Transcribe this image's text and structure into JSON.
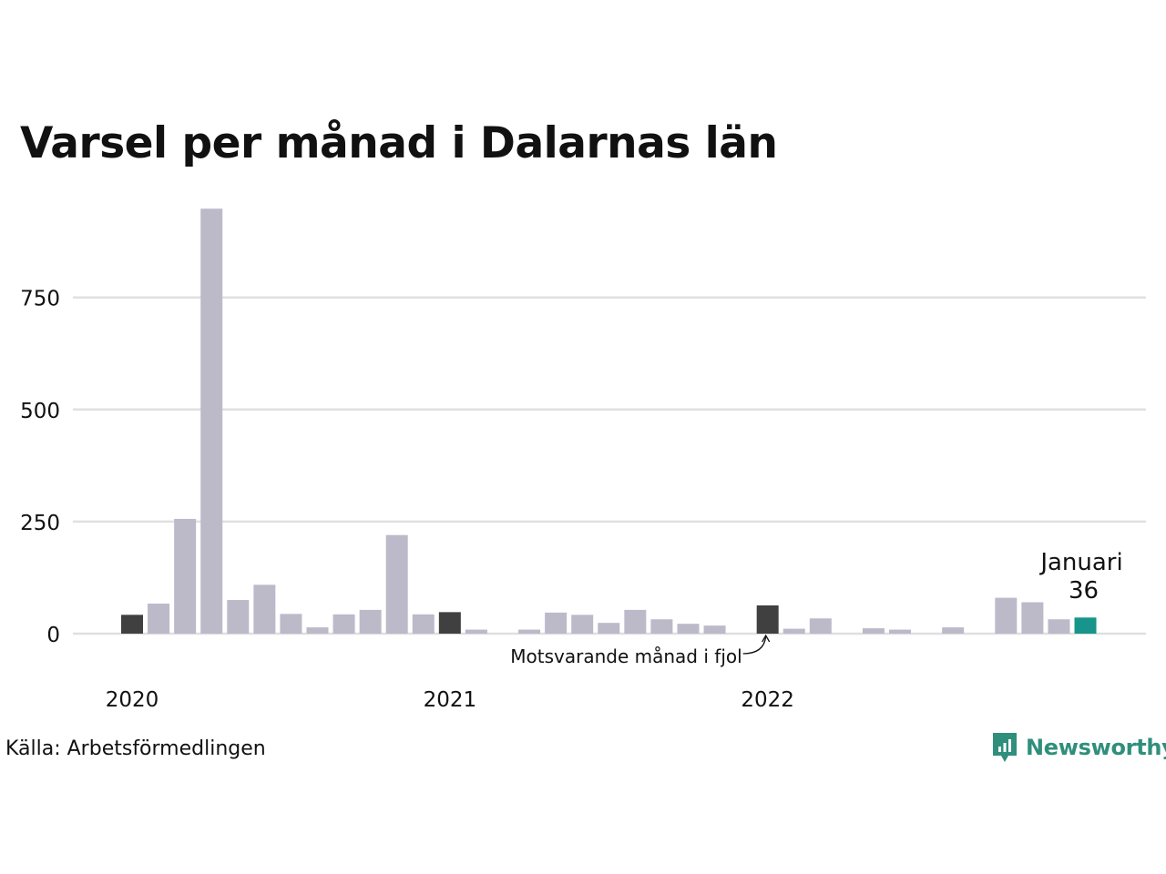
{
  "title": "Varsel per månad i Dalarnas län",
  "source": "Källa: Arbetsförmedlingen",
  "brand": {
    "name": "Newsworthy",
    "color": "#2f8f7c",
    "icon": "bar-chart-speech-bubble-icon"
  },
  "colors": {
    "default": "#bcbac9",
    "same_month_last_year": "#404040",
    "current": "#17958a",
    "grid": "#e0e0e0"
  },
  "chart_data": {
    "type": "bar",
    "x": [
      "2020-01",
      "2020-02",
      "2020-03",
      "2020-04",
      "2020-05",
      "2020-06",
      "2020-07",
      "2020-08",
      "2020-09",
      "2020-10",
      "2020-11",
      "2020-12",
      "2021-01",
      "2021-02",
      "2021-03",
      "2021-04",
      "2021-05",
      "2021-06",
      "2021-07",
      "2021-08",
      "2021-09",
      "2021-10",
      "2021-11",
      "2021-12",
      "2022-01",
      "2022-02",
      "2022-03",
      "2022-04",
      "2022-05",
      "2022-06",
      "2022-07",
      "2022-08",
      "2022-09",
      "2022-10",
      "2022-11",
      "2022-12",
      "2023-01"
    ],
    "values": [
      42,
      67,
      256,
      948,
      75,
      109,
      44,
      14,
      43,
      53,
      220,
      43,
      48,
      9,
      0,
      9,
      47,
      42,
      24,
      53,
      32,
      22,
      18,
      0,
      63,
      11,
      34,
      0,
      12,
      9,
      0,
      14,
      0,
      80,
      70,
      32,
      36
    ],
    "highlight": {
      "same_month_last_year": [
        "2020-01",
        "2021-01",
        "2022-01"
      ],
      "current": "2023-01"
    },
    "ylim": [
      0,
      948
    ],
    "yticks": [
      0,
      250,
      500,
      750
    ],
    "xtick_labels": [
      {
        "x": "2020-01",
        "label": "2020"
      },
      {
        "x": "2021-01",
        "label": "2021"
      },
      {
        "x": "2022-01",
        "label": "2022"
      }
    ],
    "annotations": {
      "current_month": "Januari",
      "current_value": "36",
      "last_year": "Motsvarande månad i fjol"
    },
    "grid": true,
    "xlabel": "",
    "ylabel": ""
  }
}
